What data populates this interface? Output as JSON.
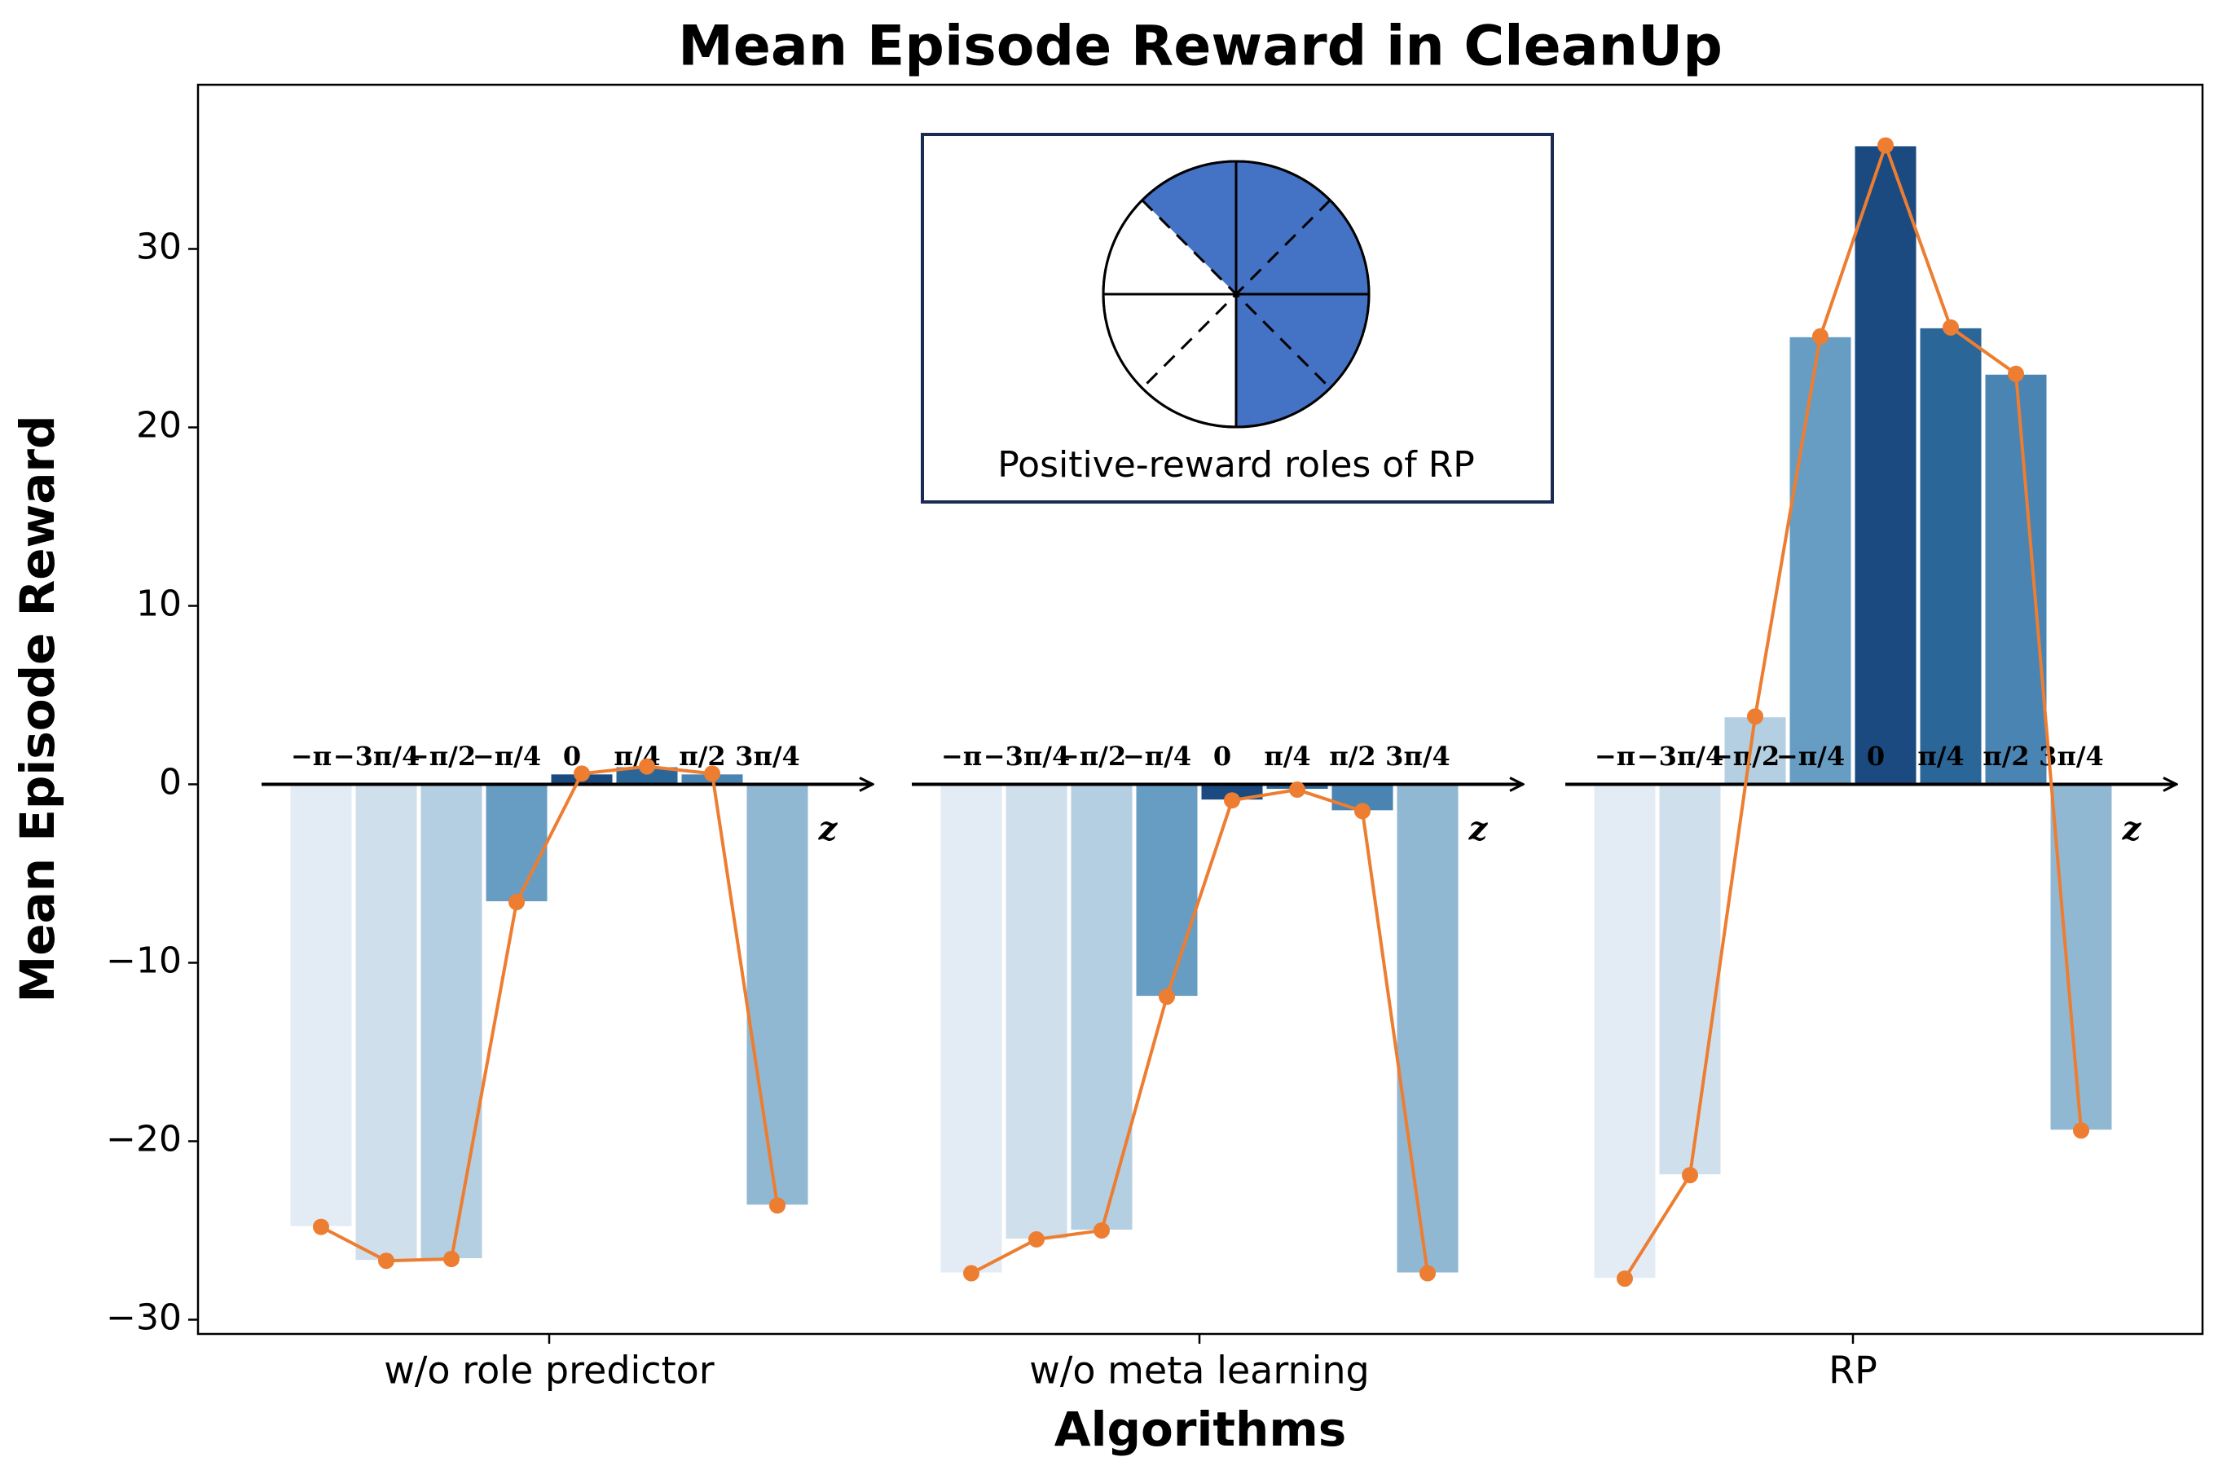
{
  "chart_data": {
    "type": "bar",
    "title": "Mean Episode Reward in CleanUp",
    "x_label": "Algorithms",
    "y_label": "Mean Episode Reward",
    "categories": [
      "w/o role predictor",
      "w/o meta learning",
      "RP"
    ],
    "sub_axis_label": "z",
    "inset_text": "Positive-reward roles of RP",
    "line_color": "#ed7d31",
    "series": [
      {
        "name": "−π",
        "color": "#e3ebf5",
        "values": [
          -24.8,
          -27.4,
          -27.7
        ]
      },
      {
        "name": "−3π/4",
        "color": "#d0dfec",
        "values": [
          -26.7,
          -25.5,
          -21.9
        ]
      },
      {
        "name": "−π/2",
        "color": "#b4cee2",
        "values": [
          -26.6,
          -25.0,
          3.8
        ]
      },
      {
        "name": "−π/4",
        "color": "#679dc3",
        "values": [
          -6.6,
          -11.9,
          25.1
        ]
      },
      {
        "name": "0",
        "color": "#1b4a80",
        "values": [
          0.6,
          -0.9,
          35.8
        ]
      },
      {
        "name": "π/4",
        "color": "#2b6699",
        "values": [
          1.0,
          -0.3,
          25.6
        ]
      },
      {
        "name": "π/2",
        "color": "#4a84b3",
        "values": [
          0.6,
          -1.5,
          23.0
        ]
      },
      {
        "name": "3π/4",
        "color": "#90b8d3",
        "values": [
          -23.6,
          -27.4,
          -19.4
        ]
      }
    ],
    "ylim": [
      -30.8,
      39.2
    ],
    "yticks": [
      {
        "value": -30,
        "label": "−30"
      },
      {
        "value": -20,
        "label": "−20"
      },
      {
        "value": -10,
        "label": "−10"
      },
      0,
      10,
      20,
      30
    ]
  }
}
